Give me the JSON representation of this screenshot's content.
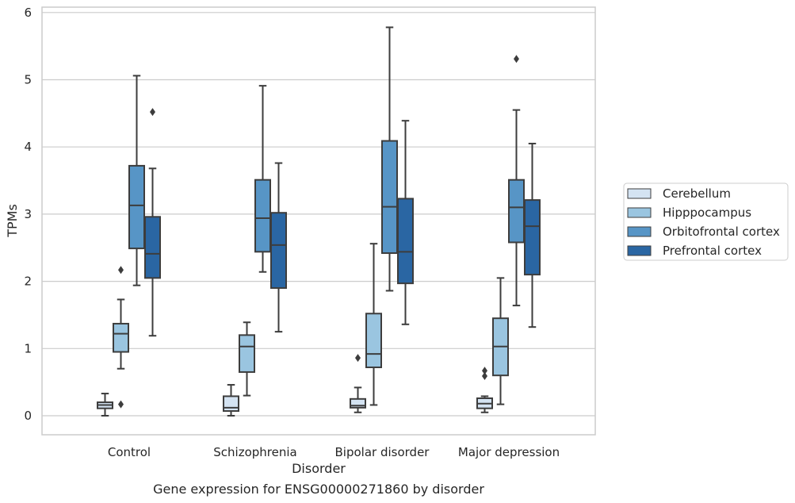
{
  "caption": "Gene expression for ENSG00000271860 by disorder",
  "chart_data": {
    "type": "boxplot",
    "xlabel": "Disorder",
    "ylabel": "TPMs",
    "ylim": [
      -0.28,
      6.1
    ],
    "yticks": [
      0,
      1,
      2,
      3,
      4,
      5,
      6
    ],
    "grid": "horizontal",
    "legend_position": "right",
    "categories": [
      "Control",
      "Schizophrenia",
      "Bipolar disorder",
      "Major depression"
    ],
    "series": [
      {
        "name": "Cerebellum",
        "color": "#d4e3f2",
        "boxes": [
          {
            "whislo": 0.0,
            "q1": 0.11,
            "med": 0.16,
            "q3": 0.2,
            "whishi": 0.33,
            "fliers": []
          },
          {
            "whislo": 0.0,
            "q1": 0.07,
            "med": 0.12,
            "q3": 0.29,
            "whishi": 0.46,
            "fliers": []
          },
          {
            "whislo": 0.05,
            "q1": 0.12,
            "med": 0.15,
            "q3": 0.25,
            "whishi": 0.42,
            "fliers": [
              0.86
            ]
          },
          {
            "whislo": 0.05,
            "q1": 0.11,
            "med": 0.18,
            "q3": 0.26,
            "whishi": 0.29,
            "fliers": [
              0.59,
              0.67
            ]
          }
        ]
      },
      {
        "name": "Hipppocampus",
        "color": "#9ac5e0",
        "boxes": [
          {
            "whislo": 0.7,
            "q1": 0.95,
            "med": 1.22,
            "q3": 1.37,
            "whishi": 1.73,
            "fliers": [
              2.17,
              0.17
            ]
          },
          {
            "whislo": 0.3,
            "q1": 0.65,
            "med": 1.03,
            "q3": 1.2,
            "whishi": 1.39,
            "fliers": []
          },
          {
            "whislo": 0.16,
            "q1": 0.72,
            "med": 0.92,
            "q3": 1.52,
            "whishi": 2.56,
            "fliers": []
          },
          {
            "whislo": 0.17,
            "q1": 0.6,
            "med": 1.03,
            "q3": 1.45,
            "whishi": 2.05,
            "fliers": []
          }
        ]
      },
      {
        "name": "Orbitofrontal cortex",
        "color": "#5795c6",
        "boxes": [
          {
            "whislo": 1.94,
            "q1": 2.49,
            "med": 3.13,
            "q3": 3.72,
            "whishi": 5.06,
            "fliers": []
          },
          {
            "whislo": 2.14,
            "q1": 2.44,
            "med": 2.94,
            "q3": 3.51,
            "whishi": 4.91,
            "fliers": []
          },
          {
            "whislo": 1.86,
            "q1": 2.42,
            "med": 3.11,
            "q3": 4.09,
            "whishi": 5.78,
            "fliers": []
          },
          {
            "whislo": 1.64,
            "q1": 2.58,
            "med": 3.1,
            "q3": 3.51,
            "whishi": 4.55,
            "fliers": [
              5.31
            ]
          }
        ]
      },
      {
        "name": "Prefrontal cortex",
        "color": "#2a66a3",
        "boxes": [
          {
            "whislo": 1.19,
            "q1": 2.05,
            "med": 2.41,
            "q3": 2.96,
            "whishi": 3.68,
            "fliers": [
              4.52
            ]
          },
          {
            "whislo": 1.25,
            "q1": 1.9,
            "med": 2.54,
            "q3": 3.02,
            "whishi": 3.76,
            "fliers": []
          },
          {
            "whislo": 1.36,
            "q1": 1.97,
            "med": 2.44,
            "q3": 3.23,
            "whishi": 4.39,
            "fliers": []
          },
          {
            "whislo": 1.32,
            "q1": 2.1,
            "med": 2.82,
            "q3": 3.21,
            "whishi": 4.05,
            "fliers": []
          }
        ]
      }
    ]
  }
}
